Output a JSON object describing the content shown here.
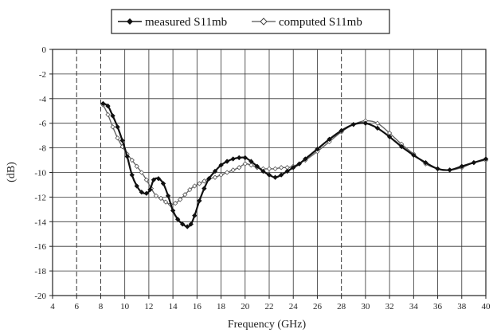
{
  "chart_data": {
    "type": "line",
    "title": "",
    "xlabel": "Frequency (GHz)",
    "ylabel": "(dB)",
    "xlim": [
      4,
      40
    ],
    "ylim": [
      -20,
      0
    ],
    "xticks": [
      4,
      6,
      8,
      10,
      12,
      14,
      16,
      18,
      20,
      22,
      24,
      26,
      28,
      30,
      32,
      34,
      36,
      38,
      40
    ],
    "yticks": [
      0,
      -2,
      -4,
      -6,
      -8,
      -10,
      -12,
      -14,
      -16,
      -18,
      -20
    ],
    "x_tick_labels": [
      "4",
      "6",
      "8",
      "10",
      "12",
      "14",
      "16",
      "18",
      "20",
      "22",
      "24",
      "26",
      "28",
      "30",
      "32",
      "34",
      "36",
      "38",
      "40"
    ],
    "y_tick_labels": [
      "0",
      "-2",
      "-4",
      "-6",
      "-8",
      "-10",
      "-12",
      "-14",
      "-16",
      "-18",
      "-20"
    ],
    "dashed_vertical_gridlines_at": [
      6,
      8,
      28
    ],
    "grid": true,
    "legend_position": "top-center",
    "series": [
      {
        "name": "measured S11mb",
        "marker": "filled-diamond",
        "color": "#111111",
        "x": [
          8.2,
          8.6,
          9.0,
          9.4,
          9.8,
          10.2,
          10.6,
          11.0,
          11.4,
          11.8,
          12.1,
          12.4,
          12.8,
          13.2,
          13.6,
          14.0,
          14.4,
          14.8,
          15.2,
          15.5,
          15.8,
          16.2,
          16.6,
          17.0,
          17.5,
          18.0,
          18.5,
          19.0,
          19.5,
          20.0,
          20.5,
          21.0,
          21.5,
          22.0,
          22.5,
          23.0,
          23.5,
          24.0,
          24.5,
          25.0,
          26.0,
          27.0,
          28.0,
          29.0,
          30.0,
          31.0,
          32.0,
          33.0,
          34.0,
          35.0,
          36.0,
          37.0,
          38.0,
          39.0,
          40.0
        ],
        "y": [
          -4.4,
          -4.6,
          -5.4,
          -6.3,
          -7.4,
          -8.7,
          -10.2,
          -11.1,
          -11.6,
          -11.7,
          -11.4,
          -10.6,
          -10.5,
          -10.9,
          -11.9,
          -13.1,
          -13.8,
          -14.2,
          -14.4,
          -14.2,
          -13.5,
          -12.3,
          -11.3,
          -10.5,
          -9.9,
          -9.4,
          -9.1,
          -8.9,
          -8.8,
          -8.8,
          -9.1,
          -9.5,
          -9.9,
          -10.2,
          -10.4,
          -10.2,
          -9.9,
          -9.6,
          -9.3,
          -8.9,
          -8.1,
          -7.3,
          -6.6,
          -6.1,
          -6.0,
          -6.4,
          -7.1,
          -7.9,
          -8.6,
          -9.2,
          -9.7,
          -9.8,
          -9.5,
          -9.2,
          -8.9
        ]
      },
      {
        "name": "computed S11mb",
        "marker": "open-diamond",
        "color": "#666666",
        "x": [
          8.2,
          8.6,
          9.0,
          9.4,
          9.8,
          10.2,
          10.6,
          11.0,
          11.4,
          11.8,
          12.2,
          12.6,
          13.0,
          13.4,
          13.8,
          14.2,
          14.6,
          15.0,
          15.4,
          15.8,
          16.2,
          16.6,
          17.0,
          17.5,
          18.0,
          18.5,
          19.0,
          19.5,
          20.0,
          20.5,
          21.0,
          21.5,
          22.0,
          22.5,
          23.0,
          23.5,
          24.0,
          25.0,
          26.0,
          27.0,
          28.0,
          29.0,
          30.0,
          31.0,
          32.0,
          33.0,
          34.0,
          35.0,
          36.0,
          37.0,
          38.0,
          39.0,
          40.0
        ],
        "y": [
          -4.5,
          -5.3,
          -6.3,
          -7.2,
          -7.9,
          -8.5,
          -9.0,
          -9.5,
          -10.0,
          -10.6,
          -11.3,
          -11.9,
          -12.1,
          -12.4,
          -12.6,
          -12.5,
          -12.2,
          -11.8,
          -11.4,
          -11.1,
          -10.9,
          -10.7,
          -10.5,
          -10.4,
          -10.2,
          -10.0,
          -9.8,
          -9.6,
          -9.3,
          -9.4,
          -9.6,
          -9.7,
          -9.7,
          -9.7,
          -9.6,
          -9.6,
          -9.5,
          -9.0,
          -8.3,
          -7.5,
          -6.7,
          -6.1,
          -5.8,
          -6.0,
          -6.8,
          -7.7,
          -8.5,
          -9.3,
          -9.7,
          -9.8,
          -9.6,
          -9.2,
          -9.0
        ]
      }
    ]
  }
}
